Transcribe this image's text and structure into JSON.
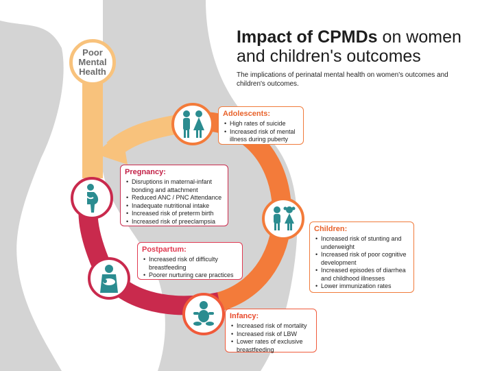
{
  "title": {
    "bold": "Impact of CPMDs",
    "rest": " on women and children's outcomes"
  },
  "subtitle": "The implications of perinatal mental health on women's outcomes and children's outcomes.",
  "poor_health": {
    "line1": "Poor",
    "line2": "Mental",
    "line3": "Health"
  },
  "stages": {
    "adolescents": {
      "title": "Adolescents:",
      "items": [
        "High rates of suicide",
        "Increased risk of mental illness during puberty"
      ]
    },
    "pregnancy": {
      "title": "Pregnancy:",
      "items": [
        "Disruptions in maternal-infant bonding and attachment",
        "Reduced ANC / PNC Attendance",
        "Inadequate nutritional intake",
        "Increased risk of preterm birth",
        "Increased risk of preeclampsia"
      ]
    },
    "children": {
      "title": "Children:",
      "items": [
        "Increased risk of stunting and underweight",
        "Increased risk of poor cognitive development",
        "Increased episodes of diarrhea and childhood illnesses",
        "Lower immunization rates"
      ]
    },
    "postpartum": {
      "title": "Postpartum:",
      "items": [
        "Increased risk of difficulty breastfeeding",
        "Poorer nurturing care practices"
      ]
    },
    "infancy": {
      "title": "Infancy:",
      "items": [
        "Increased risk of mortality",
        "Increased risk of LBW",
        "Lower rates of exclusive breastfeeding"
      ]
    }
  },
  "icons": [
    "adolescents-icon",
    "children-icon",
    "infant-icon",
    "mother-holding-baby-icon",
    "pregnant-woman-icon"
  ],
  "colors": {
    "teal": "#2b8c90",
    "orange": "#f07a3a",
    "crimson": "#c21f45",
    "light_orange": "#f8c27c",
    "grey": "#d2d2d2"
  }
}
